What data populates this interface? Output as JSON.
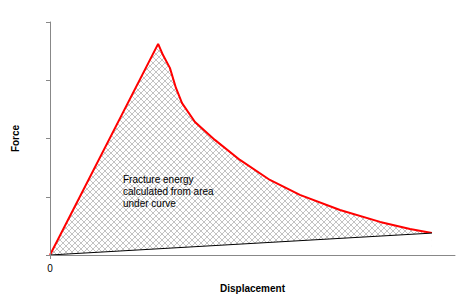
{
  "chart_data": {
    "type": "line",
    "x_label": "Displacement",
    "y_label": "Force",
    "annotation": [
      "Fracture energy",
      "calculated from area",
      "under curve"
    ],
    "series": [
      {
        "color": "#ff0000",
        "x": [
          0,
          26.7,
          27.9,
          29.6,
          31.1,
          32.6,
          35.8,
          40.7,
          46.9,
          54.3,
          61.7,
          71.6,
          81.5,
          88.9,
          94.3
        ],
        "values": [
          0,
          90.6,
          85.8,
          80.3,
          71.7,
          65.2,
          57.1,
          49.4,
          40.8,
          32.2,
          25.8,
          19.3,
          14.2,
          11.2,
          9.4
        ]
      },
      {
        "color": "#000000",
        "x": [
          0,
          94.3
        ],
        "values": [
          0,
          9.4
        ]
      }
    ],
    "xlim": [
      0,
      100
    ],
    "ylim": [
      0,
      100
    ],
    "xticks": [
      0
    ],
    "yticks": [
      0,
      25,
      50,
      75,
      100
    ],
    "tick_labels": "x",
    "grid": false
  }
}
